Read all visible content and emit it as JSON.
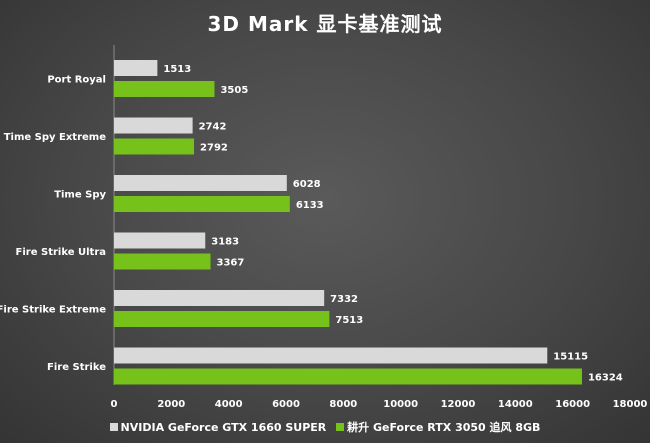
{
  "chart_data": {
    "type": "bar",
    "orientation": "horizontal",
    "title": "3D Mark 显卡基准测试",
    "categories": [
      "Port Royal",
      "Time Spy Extreme",
      "Time Spy",
      "Fire Strike Ultra",
      "Fire Strike Extreme",
      "Fire Strike"
    ],
    "series": [
      {
        "name": "NVIDIA GeForce GTX 1660 SUPER",
        "color": "#d9d9d9",
        "values": [
          1513,
          2742,
          6028,
          3183,
          7332,
          15115
        ]
      },
      {
        "name": "耕升 GeForce RTX 3050 追风 8GB",
        "color": "#76c21a",
        "values": [
          3505,
          2792,
          6133,
          3367,
          7513,
          16324
        ]
      }
    ],
    "xlim": [
      0,
      18000
    ],
    "xticks": [
      0,
      2000,
      4000,
      6000,
      8000,
      10000,
      12000,
      14000,
      16000,
      18000
    ],
    "xlabel": "",
    "ylabel": "",
    "grid": false,
    "data_labels": true,
    "legend_position": "bottom"
  }
}
